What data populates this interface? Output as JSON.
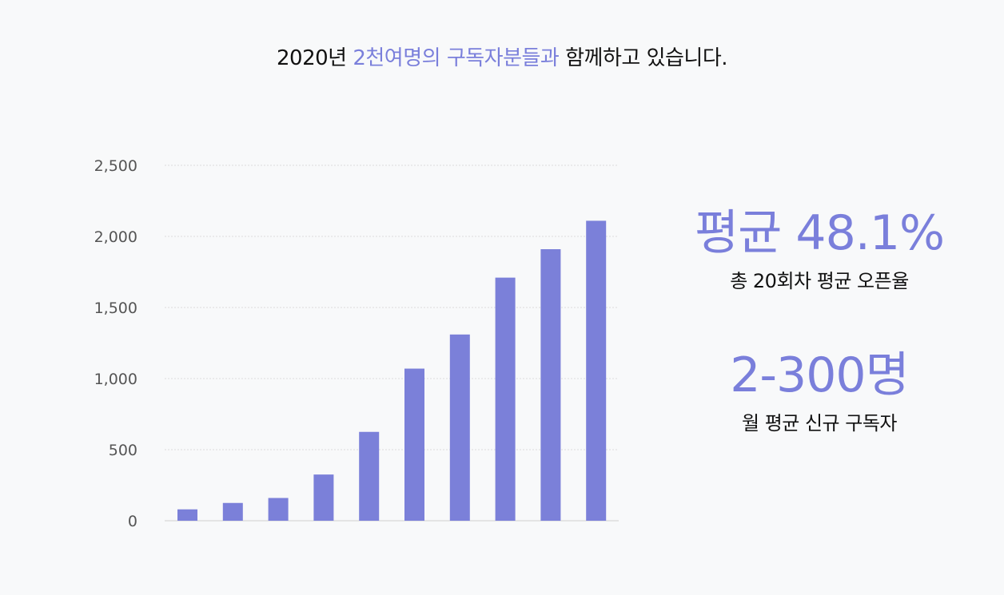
{
  "headline": {
    "part1": "2020년 ",
    "highlight": "2천여명의 구독자분들과",
    "part2": " 함께하고 있습니다."
  },
  "stats": [
    {
      "value": "평균 48.1%",
      "caption": "총 20회차 평균 오픈율"
    },
    {
      "value": "2-300명",
      "caption": "월 평균 신규 구독자"
    }
  ],
  "colors": {
    "accent": "#7a7fdb",
    "bar": "#7b80d9",
    "grid": "#dcdcdc"
  },
  "chart_data": {
    "type": "bar",
    "title": "",
    "xlabel": "",
    "ylabel": "",
    "categories": [
      "",
      "",
      "",
      "",
      "",
      "",
      "",
      "",
      "",
      ""
    ],
    "values": [
      80,
      125,
      160,
      325,
      625,
      1070,
      1310,
      1710,
      1910,
      2110
    ],
    "ylim": [
      0,
      2500
    ],
    "yticks": [
      0,
      500,
      1000,
      1500,
      2000,
      2500
    ],
    "ytick_labels": [
      "0",
      "500",
      "1,000",
      "1,500",
      "2,000",
      "2,500"
    ],
    "grid": true,
    "legend": "none"
  }
}
